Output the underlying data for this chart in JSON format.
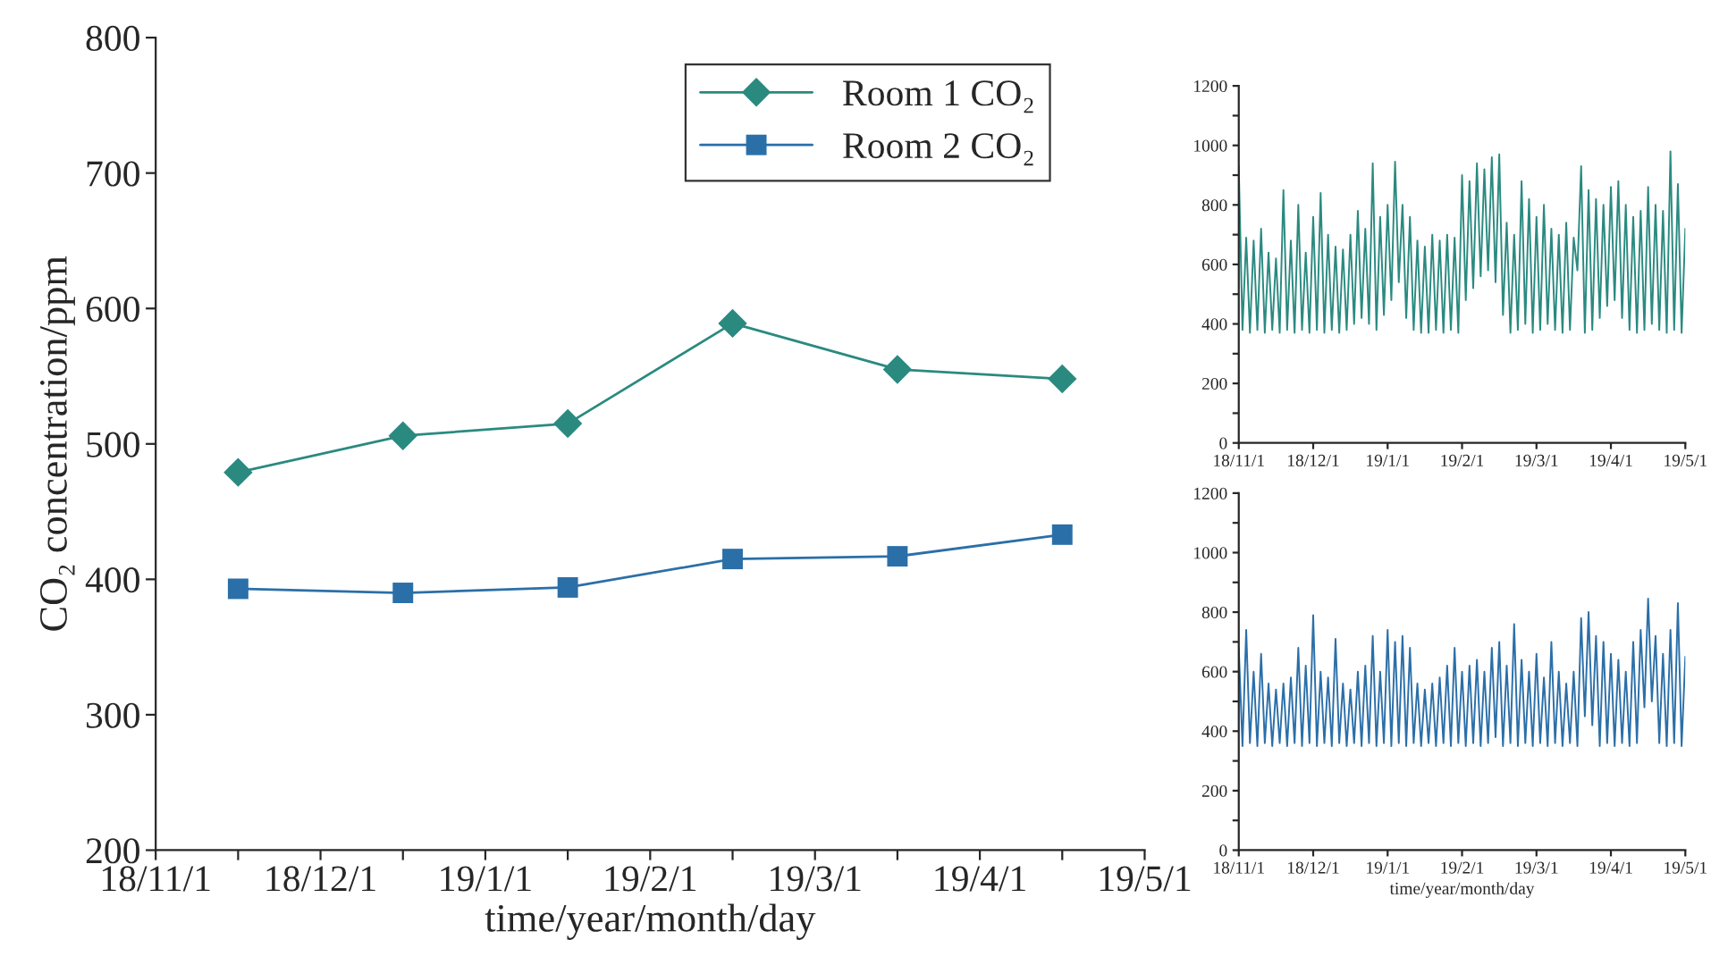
{
  "chart_data": [
    {
      "type": "line",
      "xlabel": "time/year/month/day",
      "ylabel": "CO₂ concentration/ppm",
      "categories": [
        "18/11/1",
        null,
        "18/12/1",
        null,
        "19/1/1",
        null,
        "19/2/1",
        null,
        "19/3/1",
        null,
        "19/4/1",
        null,
        "19/5/1"
      ],
      "ylim": [
        200,
        800
      ],
      "yticks": [
        200,
        300,
        400,
        500,
        600,
        700,
        800
      ],
      "series": [
        {
          "name": "Room 1 CO₂",
          "color": "#2a8a80",
          "marker": "diamond",
          "values": [
            null,
            479,
            null,
            506,
            null,
            515,
            null,
            589,
            null,
            555,
            null,
            548,
            null
          ]
        },
        {
          "name": "Room 2 CO₂",
          "color": "#2b6fa8",
          "marker": "square",
          "values": [
            null,
            393,
            null,
            390,
            null,
            394,
            null,
            415,
            null,
            417,
            null,
            433,
            null
          ]
        }
      ],
      "legend": "top",
      "grid": false,
      "line_style": "solid"
    },
    {
      "type": "line",
      "categories": [
        "18/11/1",
        null,
        null,
        null,
        null,
        null,
        null,
        null,
        null,
        null,
        null,
        null,
        null,
        null,
        null,
        null,
        null,
        null,
        null,
        null,
        "18/12/1",
        null,
        null,
        null,
        null,
        null,
        null,
        null,
        null,
        null,
        null,
        null,
        null,
        null,
        null,
        null,
        null,
        null,
        null,
        null,
        "19/1/1",
        null,
        null,
        null,
        null,
        null,
        null,
        null,
        null,
        null,
        null,
        null,
        null,
        null,
        null,
        null,
        null,
        null,
        null,
        null,
        "19/2/1",
        null,
        null,
        null,
        null,
        null,
        null,
        null,
        null,
        null,
        null,
        null,
        null,
        null,
        null,
        null,
        null,
        null,
        null,
        null,
        "19/3/1",
        null,
        null,
        null,
        null,
        null,
        null,
        null,
        null,
        null,
        null,
        null,
        null,
        null,
        null,
        null,
        null,
        null,
        null,
        null,
        "19/4/1",
        null,
        null,
        null,
        null,
        null,
        null,
        null,
        null,
        null,
        null,
        null,
        null,
        null,
        null,
        null,
        null,
        null,
        null,
        null,
        "19/5/1"
      ],
      "ylim": [
        0,
        1200
      ],
      "yticks": [
        0,
        {
          "value": 100,
          "label": null
        },
        200,
        {
          "value": 300,
          "label": null
        },
        400,
        {
          "value": 500,
          "label": null
        },
        600,
        {
          "value": 700,
          "label": null
        },
        800,
        {
          "value": 900,
          "label": null
        },
        1000,
        {
          "value": 1100,
          "label": null
        },
        1200
      ],
      "marker": "none",
      "grid": false,
      "line_style": "solid",
      "series": [
        {
          "color": "#2a8a80",
          "values": [
            930,
            380,
            690,
            370,
            680,
            380,
            720,
            370,
            640,
            380,
            620,
            370,
            850,
            380,
            680,
            370,
            800,
            380,
            640,
            370,
            760,
            380,
            840,
            370,
            700,
            380,
            660,
            370,
            650,
            380,
            700,
            400,
            780,
            420,
            720,
            400,
            940,
            380,
            760,
            430,
            800,
            480,
            945,
            540,
            800,
            420,
            760,
            380,
            680,
            370,
            660,
            370,
            700,
            380,
            680,
            370,
            700,
            380,
            690,
            370,
            900,
            480,
            880,
            520,
            940,
            560,
            920,
            580,
            960,
            540,
            970,
            430,
            740,
            370,
            700,
            380,
            880,
            400,
            820,
            370,
            760,
            380,
            800,
            400,
            720,
            380,
            700,
            370,
            740,
            380,
            690,
            580,
            930,
            370,
            850,
            380,
            820,
            420,
            800,
            460,
            860,
            480,
            880,
            420,
            800,
            380,
            760,
            370,
            780,
            380,
            860,
            400,
            800,
            380,
            780,
            370,
            980,
            380,
            870,
            370,
            720
          ]
        }
      ]
    },
    {
      "type": "line",
      "xlabel": "time/year/month/day",
      "categories": [
        "18/11/1",
        null,
        null,
        null,
        null,
        null,
        null,
        null,
        null,
        null,
        null,
        null,
        null,
        null,
        null,
        null,
        null,
        null,
        null,
        null,
        "18/12/1",
        null,
        null,
        null,
        null,
        null,
        null,
        null,
        null,
        null,
        null,
        null,
        null,
        null,
        null,
        null,
        null,
        null,
        null,
        null,
        "19/1/1",
        null,
        null,
        null,
        null,
        null,
        null,
        null,
        null,
        null,
        null,
        null,
        null,
        null,
        null,
        null,
        null,
        null,
        null,
        null,
        "19/2/1",
        null,
        null,
        null,
        null,
        null,
        null,
        null,
        null,
        null,
        null,
        null,
        null,
        null,
        null,
        null,
        null,
        null,
        null,
        null,
        "19/3/1",
        null,
        null,
        null,
        null,
        null,
        null,
        null,
        null,
        null,
        null,
        null,
        null,
        null,
        null,
        null,
        null,
        null,
        null,
        null,
        "19/4/1",
        null,
        null,
        null,
        null,
        null,
        null,
        null,
        null,
        null,
        null,
        null,
        null,
        null,
        null,
        null,
        null,
        null,
        null,
        null,
        "19/5/1"
      ],
      "ylim": [
        0,
        1200
      ],
      "yticks": [
        0,
        {
          "value": 100,
          "label": null
        },
        200,
        {
          "value": 300,
          "label": null
        },
        400,
        {
          "value": 500,
          "label": null
        },
        600,
        {
          "value": 700,
          "label": null
        },
        800,
        {
          "value": 900,
          "label": null
        },
        1000,
        {
          "value": 1100,
          "label": null
        },
        1200
      ],
      "marker": "none",
      "grid": false,
      "line_style": "solid",
      "series": [
        {
          "color": "#2b6fa8",
          "values": [
            680,
            350,
            740,
            360,
            600,
            350,
            660,
            360,
            560,
            350,
            540,
            360,
            560,
            350,
            580,
            360,
            680,
            350,
            620,
            360,
            790,
            350,
            600,
            360,
            580,
            350,
            710,
            360,
            560,
            350,
            540,
            360,
            600,
            350,
            620,
            360,
            720,
            350,
            600,
            360,
            740,
            350,
            700,
            360,
            720,
            350,
            680,
            360,
            560,
            350,
            540,
            360,
            560,
            350,
            580,
            360,
            620,
            350,
            680,
            360,
            600,
            350,
            620,
            360,
            640,
            350,
            600,
            360,
            680,
            380,
            700,
            350,
            620,
            360,
            760,
            350,
            640,
            360,
            600,
            350,
            660,
            360,
            580,
            350,
            700,
            360,
            600,
            350,
            560,
            360,
            600,
            350,
            780,
            450,
            800,
            420,
            720,
            350,
            700,
            360,
            660,
            350,
            640,
            360,
            600,
            350,
            700,
            360,
            740,
            480,
            845,
            500,
            720,
            360,
            660,
            350,
            740,
            360,
            830,
            350,
            650
          ]
        }
      ]
    }
  ]
}
